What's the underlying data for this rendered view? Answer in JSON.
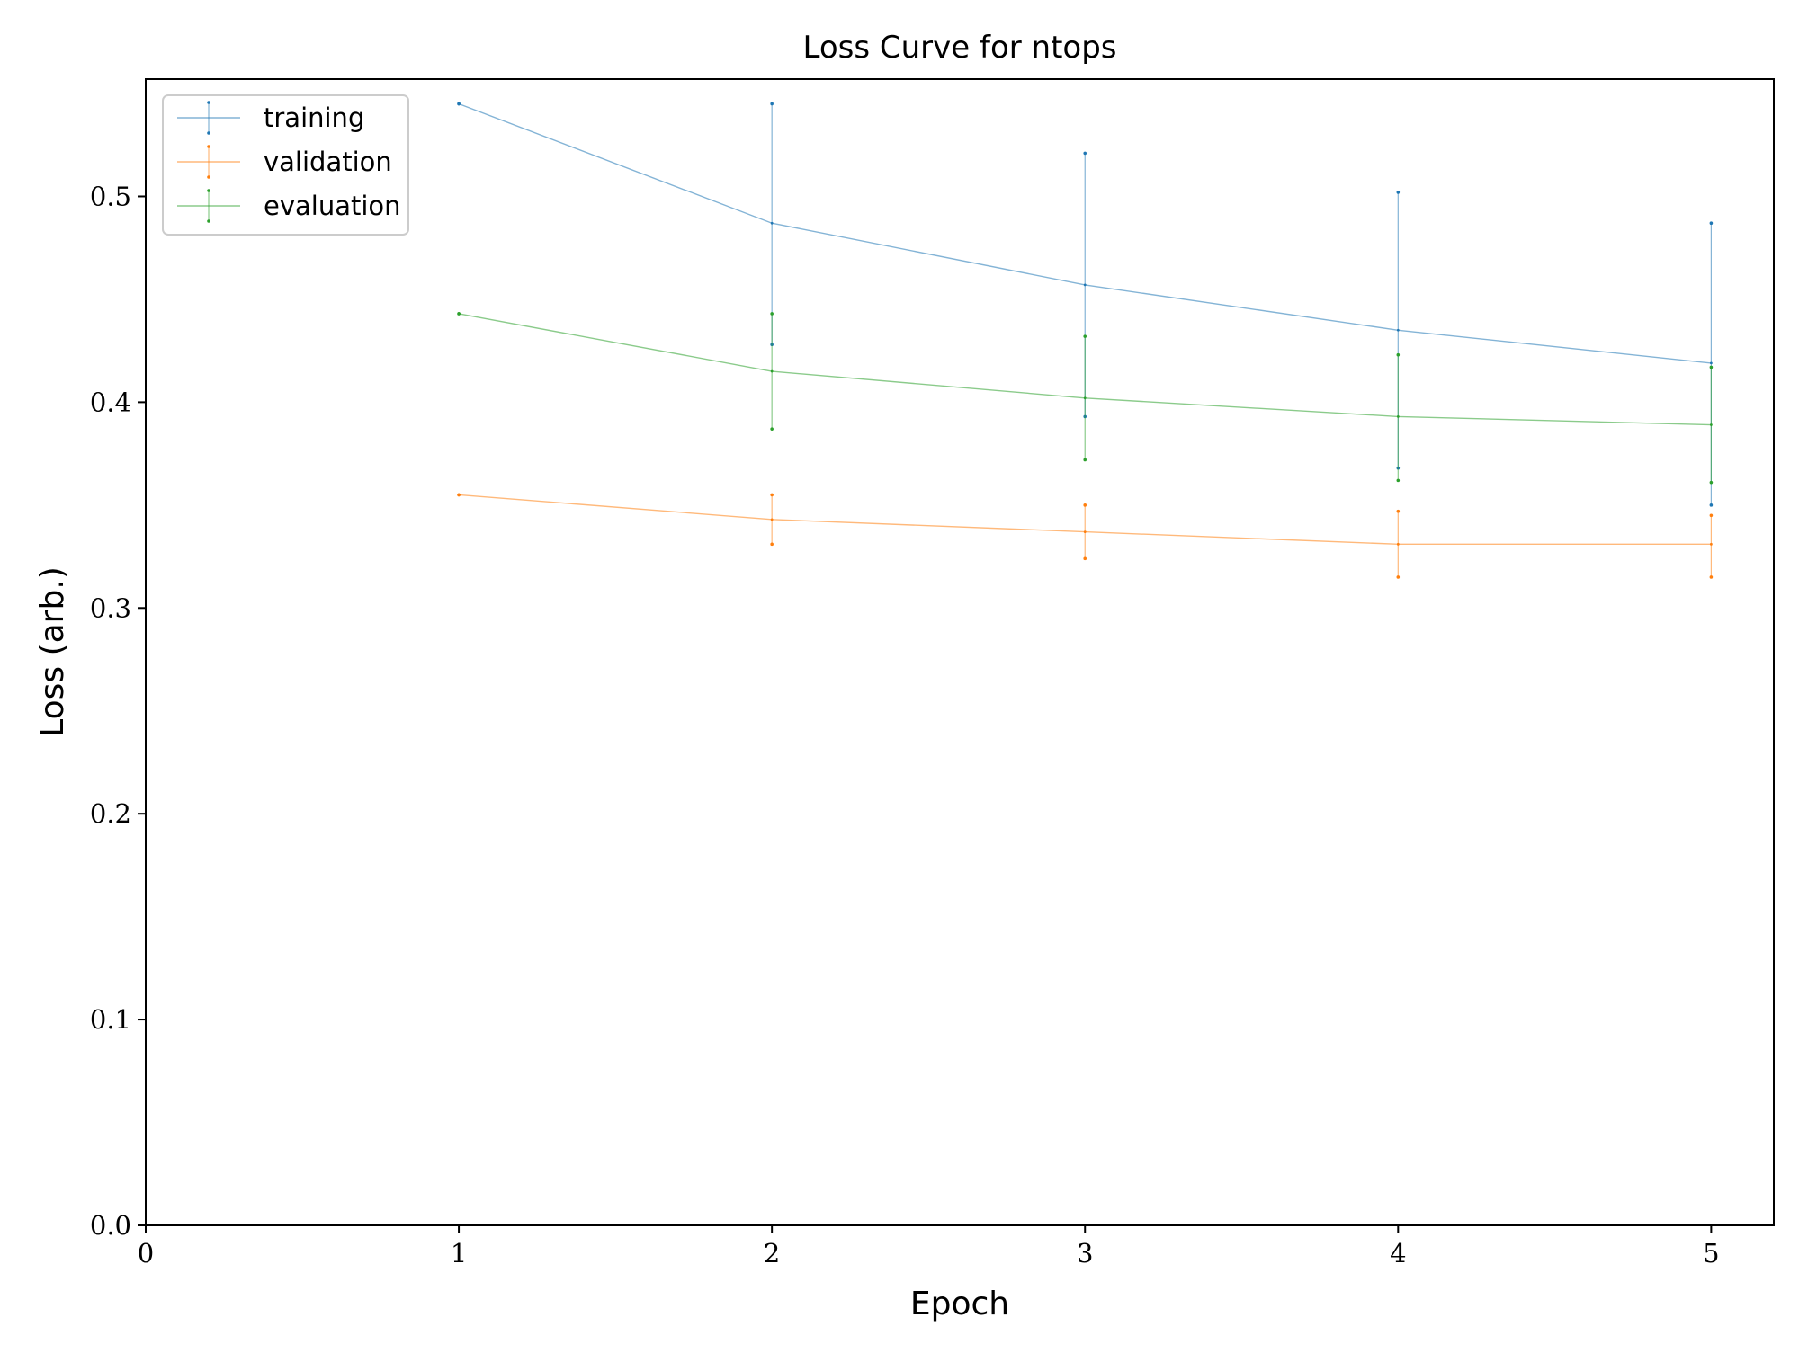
{
  "chart_data": {
    "type": "line",
    "title": "Loss Curve for ntops",
    "xlabel": "Epoch",
    "ylabel": "Loss (arb.)",
    "xlim": [
      0,
      5.2
    ],
    "ylim": [
      0,
      0.557
    ],
    "xticks": [
      0,
      1,
      2,
      3,
      4,
      5
    ],
    "xtick_labels": [
      "0",
      "1",
      "2",
      "3",
      "4",
      "5"
    ],
    "yticks": [
      0.0,
      0.1,
      0.2,
      0.3,
      0.4,
      0.5
    ],
    "ytick_labels": [
      "0.0",
      "0.1",
      "0.2",
      "0.3",
      "0.4",
      "0.5"
    ],
    "grid": false,
    "legend_position": "top-left",
    "series": [
      {
        "name": "training",
        "color": "#1f77b4",
        "x": [
          1,
          2,
          3,
          4,
          5
        ],
        "y": [
          0.545,
          0.487,
          0.457,
          0.435,
          0.419
        ],
        "err_low": [
          0.545,
          0.428,
          0.393,
          0.368,
          0.35
        ],
        "err_high": [
          0.545,
          0.545,
          0.521,
          0.502,
          0.487
        ]
      },
      {
        "name": "validation",
        "color": "#ff7f0e",
        "x": [
          1,
          2,
          3,
          4,
          5
        ],
        "y": [
          0.355,
          0.343,
          0.337,
          0.331,
          0.331
        ],
        "err_low": [
          0.355,
          0.331,
          0.324,
          0.315,
          0.315
        ],
        "err_high": [
          0.355,
          0.355,
          0.35,
          0.347,
          0.345
        ]
      },
      {
        "name": "evaluation",
        "color": "#2ca02c",
        "x": [
          1,
          2,
          3,
          4,
          5
        ],
        "y": [
          0.443,
          0.415,
          0.402,
          0.393,
          0.389
        ],
        "err_low": [
          0.443,
          0.387,
          0.372,
          0.362,
          0.361
        ],
        "err_high": [
          0.443,
          0.443,
          0.432,
          0.423,
          0.417
        ]
      }
    ]
  }
}
